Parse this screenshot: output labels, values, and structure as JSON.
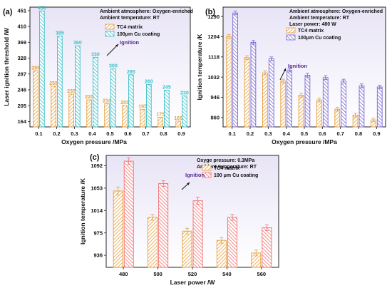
{
  "chart_data": [
    {
      "id": "a",
      "type": "bar",
      "panel_label": "(a)",
      "title": "",
      "xlabel": "Oxygen pressure /MPa",
      "ylabel": "Laser ignition threshold /W",
      "categories": [
        "0.1",
        "0.2",
        "0.3",
        "0.4",
        "0.5",
        "0.6",
        "0.7",
        "0.8",
        "0.9"
      ],
      "ylim": [
        150,
        460
      ],
      "yticks": [
        "164",
        "205",
        "246",
        "287",
        "328",
        "369",
        "410",
        "451"
      ],
      "annotations": [
        "Ambient atmosphere: Oxygen-enriched",
        "Ambient  temperature: RT"
      ],
      "arrow_label": "Ignition",
      "data_labels": true,
      "series": [
        {
          "name": "TC4 matrix",
          "color": "#e6a03c",
          "values": [
            295,
            255,
            235,
            220,
            210,
            205,
            195,
            175,
            165
          ]
        },
        {
          "name": "100μm Cu coating",
          "color": "#3cc0c8",
          "values": [
            450,
            385,
            360,
            330,
            300,
            285,
            260,
            245,
            230
          ]
        }
      ]
    },
    {
      "id": "b",
      "type": "bar",
      "panel_label": "(b)",
      "title": "",
      "xlabel": "Oxygen pressure /MPa",
      "ylabel": "Ignition temperature /K",
      "categories": [
        "0.1",
        "0.2",
        "0.3",
        "0.4",
        "0.5",
        "0.6",
        "0.7",
        "0.8",
        "0.9"
      ],
      "ylim": [
        820,
        1330
      ],
      "yticks": [
        "860",
        "946",
        "1032",
        "1118",
        "1204",
        "1290"
      ],
      "annotations": [
        "Ambient atmosphere: Oxygen-enriched",
        "Ambient  temperature: RT",
        "Laser power:  480 W"
      ],
      "arrow_label": "Ignition",
      "data_labels": false,
      "series": [
        {
          "name": "TC4 matrix",
          "color": "#e6a03c",
          "values": [
            1205,
            1115,
            1050,
            1015,
            955,
            935,
            895,
            870,
            850
          ],
          "errors": [
            8,
            8,
            8,
            8,
            8,
            8,
            8,
            8,
            8
          ]
        },
        {
          "name": "100μm Cu coating",
          "color": "#7a6ad2",
          "values": [
            1305,
            1180,
            1110,
            1062,
            1040,
            1030,
            1015,
            995,
            990
          ],
          "errors": [
            8,
            8,
            8,
            8,
            8,
            8,
            8,
            8,
            8
          ]
        }
      ]
    },
    {
      "id": "c",
      "type": "bar",
      "panel_label": "(c)",
      "title": "",
      "xlabel": "Laser power /W",
      "ylabel": "Ignition temperature /K",
      "categories": [
        "480",
        "500",
        "520",
        "540",
        "560"
      ],
      "ylim": [
        915,
        1110
      ],
      "yticks": [
        "936",
        "975",
        "1014",
        "1053",
        "1092"
      ],
      "annotations": [
        "Oxyge pressure: 0.3MPa",
        "Ambient  temperature: RT"
      ],
      "arrow_label": "Ignition",
      "data_labels": false,
      "series": [
        {
          "name": "TC4 matrix",
          "color": "#e6a03c",
          "values": [
            1048,
            1002,
            978,
            962,
            940
          ],
          "errors": [
            7,
            5,
            5,
            5,
            5
          ]
        },
        {
          "name": "100 μm Cu coating",
          "color": "#f07070",
          "values": [
            1100,
            1061,
            1031,
            1002,
            984
          ],
          "errors": [
            6,
            5,
            6,
            5,
            5
          ]
        }
      ]
    }
  ]
}
